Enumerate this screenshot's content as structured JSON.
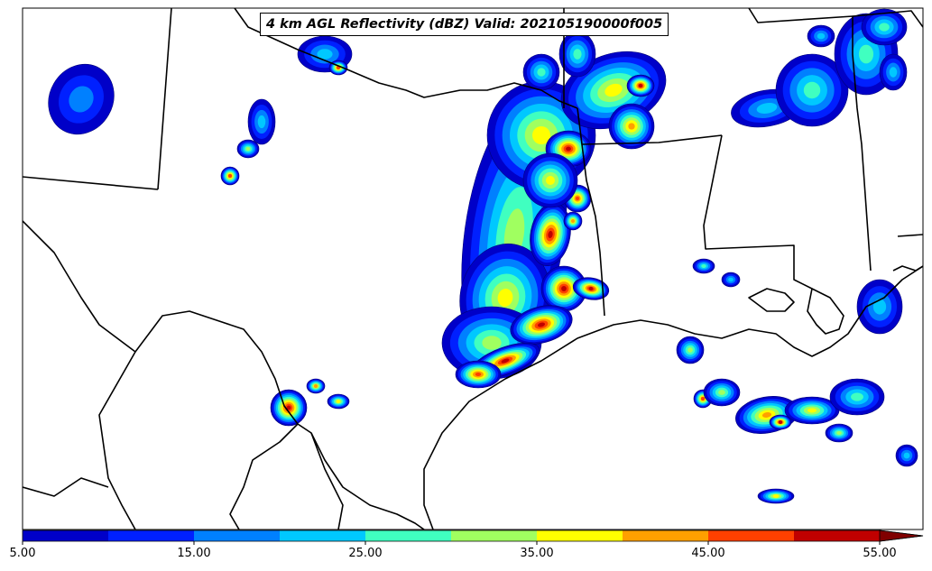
{
  "title": "4 km AGL Reflectivity (dBZ) Valid: 202105190000f005",
  "colorbar": {
    "min": 5,
    "max": 60,
    "step": 5,
    "extend": "max",
    "colors": [
      "#0000c8",
      "#0020ff",
      "#0080ff",
      "#00c8ff",
      "#40ffc0",
      "#a0ff60",
      "#ffff00",
      "#ffa000",
      "#ff4000",
      "#c00000",
      "#800000"
    ],
    "tick_labels": [
      "5.00",
      "15.00",
      "25.00",
      "35.00",
      "45.00",
      "55.00"
    ],
    "tick_values": [
      5,
      15,
      25,
      35,
      45,
      55
    ]
  },
  "map": {
    "region": "Texas, Louisiana, Mississippi and northern Mexico",
    "features": [
      "state-borders",
      "coastline",
      "country-border"
    ]
  }
}
